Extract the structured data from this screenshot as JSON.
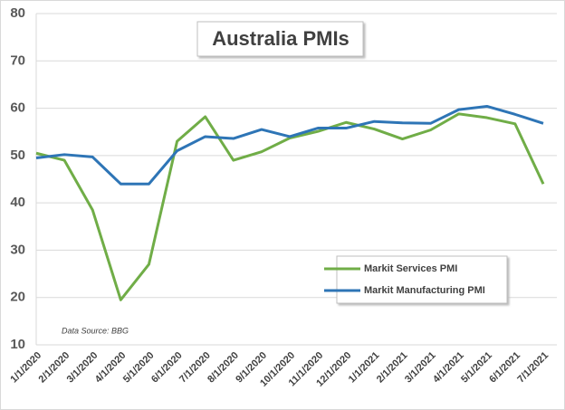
{
  "chart_data": {
    "type": "line",
    "title": "Australia PMIs",
    "categories": [
      "1/1/2020",
      "2/1/2020",
      "3/1/2020",
      "4/1/2020",
      "5/1/2020",
      "6/1/2020",
      "7/1/2020",
      "8/1/2020",
      "9/1/2020",
      "10/1/2020",
      "11/1/2020",
      "12/1/2020",
      "1/1/2021",
      "2/1/2021",
      "3/1/2021",
      "4/1/2021",
      "5/1/2021",
      "6/1/2021",
      "7/1/2021"
    ],
    "series": [
      {
        "name": "Markit Services PMI",
        "color": "#70ad47",
        "values": [
          50.5,
          49,
          38.5,
          19.5,
          27,
          53,
          58.2,
          49,
          50.8,
          53.7,
          55.1,
          57,
          55.6,
          53.5,
          55.4,
          58.8,
          58,
          56.7,
          44
        ]
      },
      {
        "name": "Markit Manufacturing PMI",
        "color": "#2e75b6",
        "values": [
          49.5,
          50.2,
          49.7,
          44,
          44,
          51,
          54,
          53.6,
          55.5,
          54,
          55.8,
          55.8,
          57.2,
          56.9,
          56.8,
          59.7,
          60.4,
          58.7,
          56.8
        ]
      }
    ],
    "ylim": [
      10,
      80
    ],
    "yticks": [
      10,
      20,
      30,
      40,
      50,
      60,
      70,
      80
    ],
    "grid": true,
    "legend": "lower right",
    "source": "Data Source: BBG"
  }
}
